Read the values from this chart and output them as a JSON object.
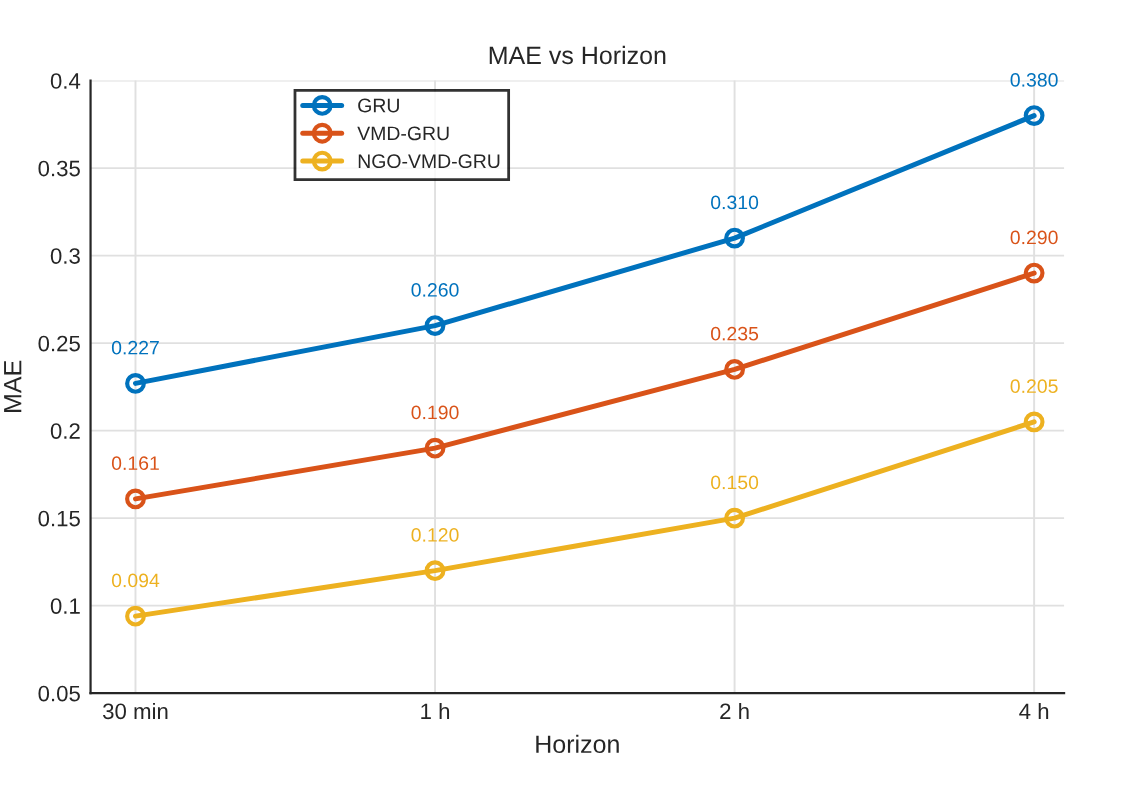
{
  "chart_data": {
    "type": "line",
    "title": "MAE vs Horizon",
    "xlabel": "Horizon",
    "ylabel": "MAE",
    "categories": [
      "30 min",
      "1 h",
      "2 h",
      "4 h"
    ],
    "series": [
      {
        "name": "GRU",
        "color": "#0072bd",
        "values": [
          0.227,
          0.26,
          0.31,
          0.38
        ],
        "value_labels": [
          "0.227",
          "0.260",
          "0.310",
          "0.380"
        ]
      },
      {
        "name": "VMD-GRU",
        "color": "#d95319",
        "values": [
          0.161,
          0.19,
          0.235,
          0.29
        ],
        "value_labels": [
          "0.161",
          "0.190",
          "0.235",
          "0.290"
        ]
      },
      {
        "name": "NGO-VMD-GRU",
        "color": "#edb120",
        "values": [
          0.094,
          0.12,
          0.15,
          0.205
        ],
        "value_labels": [
          "0.094",
          "0.120",
          "0.150",
          "0.205"
        ]
      }
    ],
    "ylim": [
      0.05,
      0.4
    ],
    "yticks": [
      0.05,
      {
        "value": 0.1,
        "label": "0.1"
      },
      0.15,
      {
        "value": 0.2,
        "label": "0.2"
      },
      0.25,
      {
        "value": 0.3,
        "label": "0.3"
      },
      0.35,
      {
        "value": 0.4,
        "label": "0.4"
      }
    ],
    "grid": true,
    "legend": "top left",
    "marker": "circle",
    "line_style": "solid"
  }
}
